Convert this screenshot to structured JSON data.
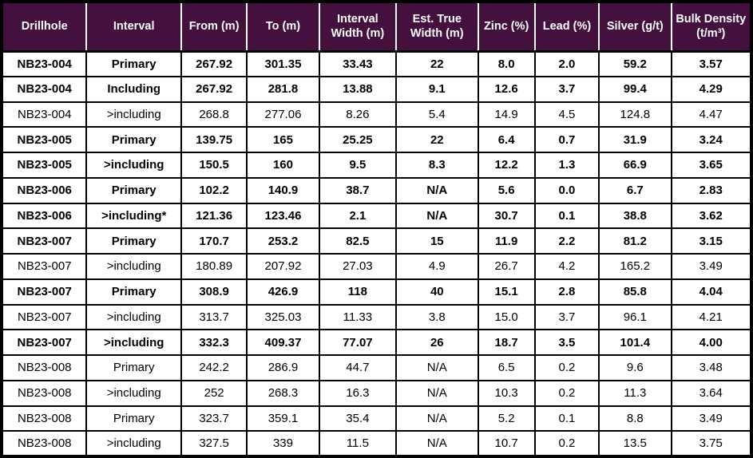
{
  "table": {
    "title": "Drillhole assay results table",
    "header_bg": "#44103E",
    "header_text_color": "#FFFFFF",
    "grid_border_color": "#000000",
    "columns": [
      "Drillhole",
      "Interval",
      "From (m)",
      "To (m)",
      "Interval Width (m)",
      "Est. True Width (m)",
      "Zinc (%)",
      "Lead (%)",
      "Silver (g/t)",
      "Bulk Density (t/m³)"
    ],
    "rows": [
      {
        "bold": true,
        "cells": [
          "NB23-004",
          "Primary",
          "267.92",
          "301.35",
          "33.43",
          "22",
          "8.0",
          "2.0",
          "59.2",
          "3.57"
        ]
      },
      {
        "bold": true,
        "cells": [
          "NB23-004",
          "Including",
          "267.92",
          "281.8",
          "13.88",
          "9.1",
          "12.6",
          "3.7",
          "99.4",
          "4.29"
        ]
      },
      {
        "bold": false,
        "cells": [
          "NB23-004",
          ">including",
          "268.8",
          "277.06",
          "8.26",
          "5.4",
          "14.9",
          "4.5",
          "124.8",
          "4.47"
        ]
      },
      {
        "bold": true,
        "cells": [
          "NB23-005",
          "Primary",
          "139.75",
          "165",
          "25.25",
          "22",
          "6.4",
          "0.7",
          "31.9",
          "3.24"
        ]
      },
      {
        "bold": true,
        "cells": [
          "NB23-005",
          ">including",
          "150.5",
          "160",
          "9.5",
          "8.3",
          "12.2",
          "1.3",
          "66.9",
          "3.65"
        ]
      },
      {
        "bold": true,
        "cells": [
          "NB23-006",
          "Primary",
          "102.2",
          "140.9",
          "38.7",
          "N/A",
          "5.6",
          "0.0",
          "6.7",
          "2.83"
        ]
      },
      {
        "bold": true,
        "cells": [
          "NB23-006",
          ">including*",
          "121.36",
          "123.46",
          "2.1",
          "N/A",
          "30.7",
          "0.1",
          "38.8",
          "3.62"
        ]
      },
      {
        "bold": true,
        "cells": [
          "NB23-007",
          "Primary",
          "170.7",
          "253.2",
          "82.5",
          "15",
          "11.9",
          "2.2",
          "81.2",
          "3.15"
        ]
      },
      {
        "bold": false,
        "cells": [
          "NB23-007",
          ">including",
          "180.89",
          "207.92",
          "27.03",
          "4.9",
          "26.7",
          "4.2",
          "165.2",
          "3.49"
        ]
      },
      {
        "bold": true,
        "cells": [
          "NB23-007",
          "Primary",
          "308.9",
          "426.9",
          "118",
          "40",
          "15.1",
          "2.8",
          "85.8",
          "4.04"
        ]
      },
      {
        "bold": false,
        "cells": [
          "NB23-007",
          ">including",
          "313.7",
          "325.03",
          "11.33",
          "3.8",
          "15.0",
          "3.7",
          "96.1",
          "4.21"
        ]
      },
      {
        "bold": true,
        "cells": [
          "NB23-007",
          ">including",
          "332.3",
          "409.37",
          "77.07",
          "26",
          "18.7",
          "3.5",
          "101.4",
          "4.00"
        ]
      },
      {
        "bold": false,
        "cells": [
          "NB23-008",
          "Primary",
          "242.2",
          "286.9",
          "44.7",
          "N/A",
          "6.5",
          "0.2",
          "9.6",
          "3.48"
        ]
      },
      {
        "bold": false,
        "cells": [
          "NB23-008",
          ">including",
          "252",
          "268.3",
          "16.3",
          "N/A",
          "10.3",
          "0.2",
          "11.3",
          "3.64"
        ]
      },
      {
        "bold": false,
        "cells": [
          "NB23-008",
          "Primary",
          "323.7",
          "359.1",
          "35.4",
          "N/A",
          "5.2",
          "0.1",
          "8.8",
          "3.49"
        ]
      },
      {
        "bold": false,
        "cells": [
          "NB23-008",
          ">including",
          "327.5",
          "339",
          "11.5",
          "N/A",
          "10.7",
          "0.2",
          "13.5",
          "3.75"
        ]
      }
    ]
  }
}
